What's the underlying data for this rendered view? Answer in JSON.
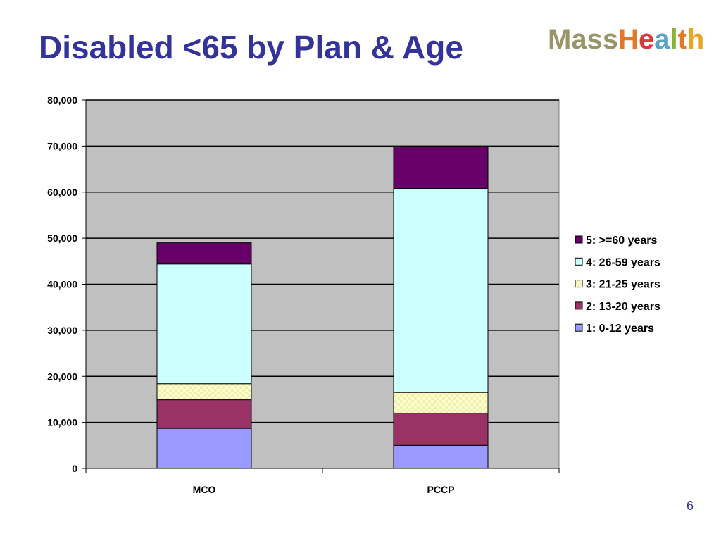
{
  "slide": {
    "title": "Disabled <65 by Plan & Age",
    "page_number": "6"
  },
  "logo": {
    "text": "MassHealth",
    "letters": [
      {
        "char": "M",
        "color": "#9a9568"
      },
      {
        "char": "a",
        "color": "#9a9568"
      },
      {
        "char": "s",
        "color": "#9a9568"
      },
      {
        "char": "s",
        "color": "#9a9568"
      },
      {
        "char": "H",
        "color": "#e0792a"
      },
      {
        "char": "e",
        "color": "#d63a3a"
      },
      {
        "char": "a",
        "color": "#5aa3c8"
      },
      {
        "char": "l",
        "color": "#86b33a"
      },
      {
        "char": "t",
        "color": "#e0792a"
      },
      {
        "char": "h",
        "color": "#e8a626"
      }
    ]
  },
  "chart_data": {
    "type": "bar",
    "stacked": true,
    "categories": [
      "MCO",
      "PCCP"
    ],
    "ylim": [
      0,
      80000
    ],
    "yticks": [
      0,
      10000,
      20000,
      30000,
      40000,
      50000,
      60000,
      70000,
      80000
    ],
    "ytick_labels": [
      "0",
      "10,000",
      "20,000",
      "30,000",
      "40,000",
      "50,000",
      "60,000",
      "70,000",
      "80,000"
    ],
    "grid": true,
    "legend_position": "right",
    "plot_background": "#c0c0c0",
    "series": [
      {
        "name": "1: 0-12 years",
        "values": [
          8700,
          5000
        ],
        "color": "#9999ff",
        "pattern": "solid"
      },
      {
        "name": "2: 13-20 years",
        "values": [
          6200,
          7000
        ],
        "color": "#993366",
        "pattern": "solid"
      },
      {
        "name": "3: 21-25 years",
        "values": [
          3500,
          4500
        ],
        "color": "#ffffcc",
        "pattern": "checker"
      },
      {
        "name": "4: 26-59 years",
        "values": [
          26000,
          44300
        ],
        "color": "#ccffff",
        "pattern": "solid"
      },
      {
        "name": "5: >=60 years",
        "values": [
          4600,
          9200
        ],
        "color": "#660066",
        "pattern": "solid"
      }
    ]
  }
}
